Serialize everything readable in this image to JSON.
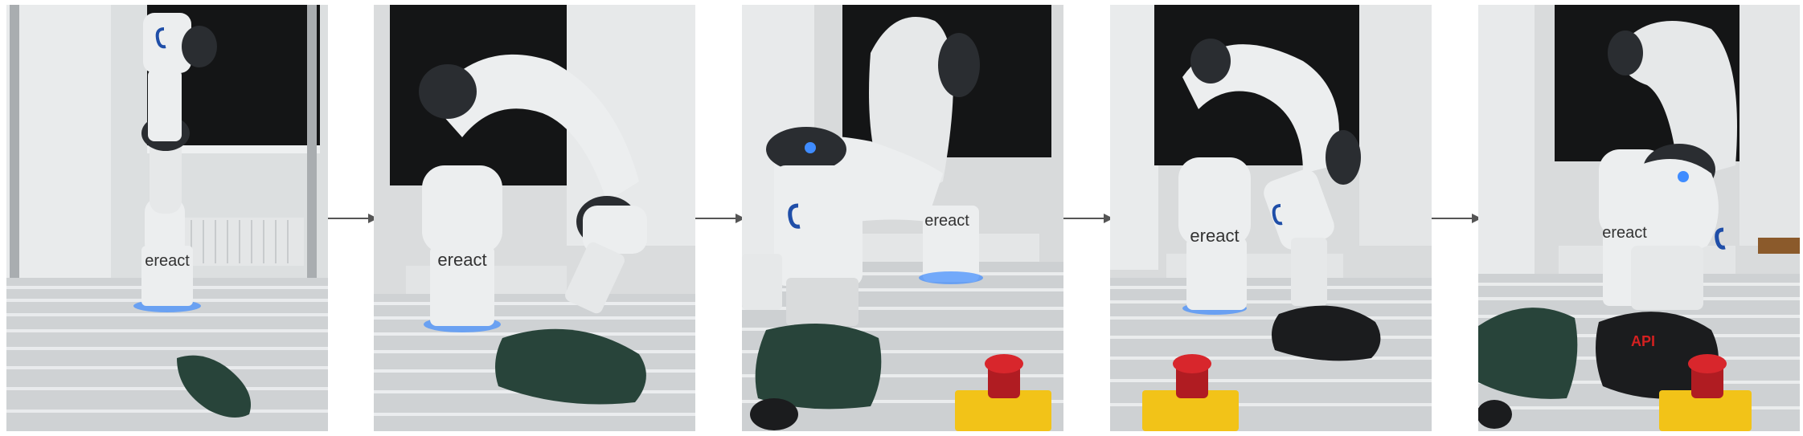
{
  "figure": {
    "panel_count": 5,
    "panels": [
      {
        "id": "panel-1",
        "caption": ""
      },
      {
        "id": "panel-2",
        "caption": ""
      },
      {
        "id": "panel-3",
        "caption": ""
      },
      {
        "id": "panel-4",
        "caption": ""
      },
      {
        "id": "panel-5",
        "caption": ""
      }
    ],
    "robot_brand_text": "ereact",
    "cap_logo_text": "API",
    "colors": {
      "background": "#ffffff",
      "arrow": "#555555",
      "robot_white": "#eceeef",
      "robot_joint": "#2a2d31",
      "green_cap": "#28443a",
      "black_cap": "#1b1c1e",
      "cap_logo": "#d42020",
      "estop_red": "#d8262c",
      "estop_yellow": "#f2c318",
      "led_blue": "#3f8cff"
    }
  }
}
